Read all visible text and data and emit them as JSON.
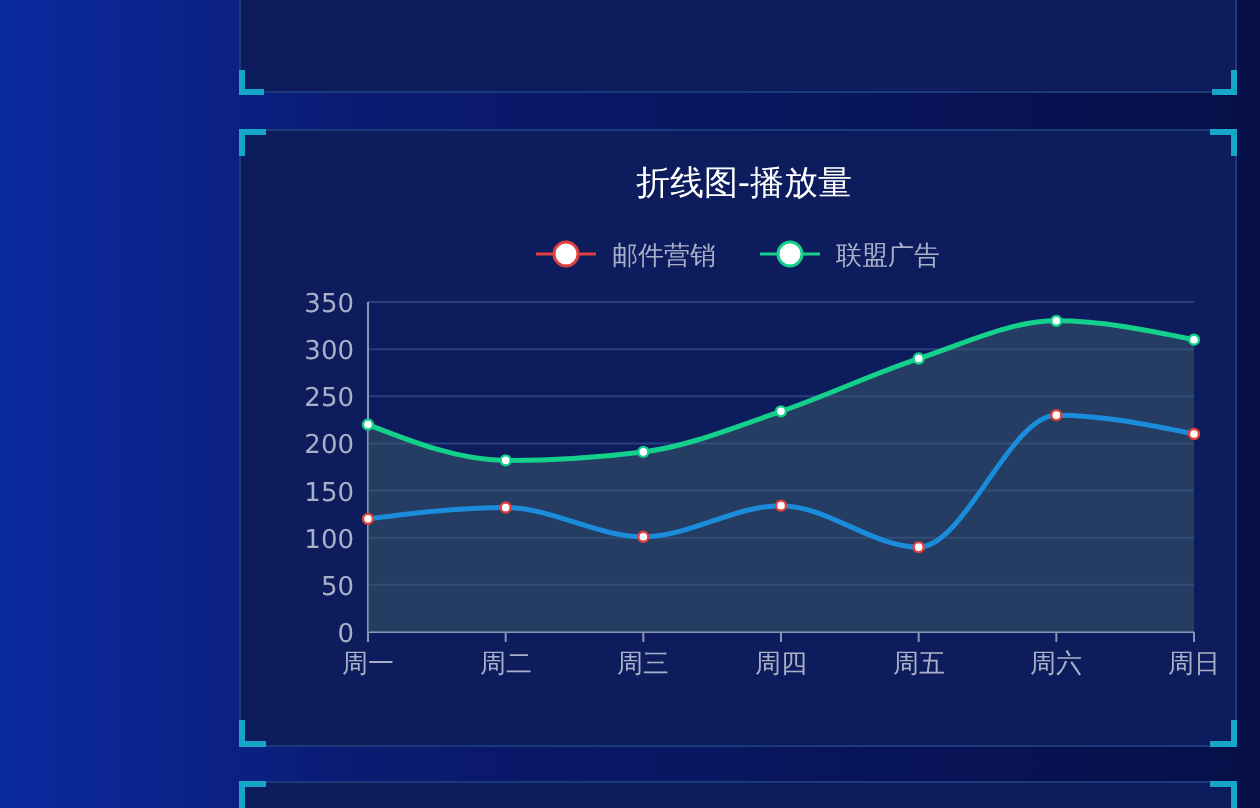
{
  "chart_data": {
    "type": "line",
    "title": "折线图-播放量",
    "categories": [
      "周一",
      "周二",
      "周三",
      "周四",
      "周五",
      "周六",
      "周日"
    ],
    "series": [
      {
        "name": "邮件营销",
        "color": "#1a8cdb",
        "values": [
          120,
          132,
          101,
          134,
          90,
          230,
          210
        ]
      },
      {
        "name": "联盟广告",
        "type": "area",
        "color": "#13d08b",
        "values": [
          220,
          182,
          191,
          234,
          290,
          330,
          310
        ]
      }
    ],
    "ylim": [
      0,
      350
    ],
    "yticks": [
      0,
      50,
      100,
      150,
      200,
      250,
      300,
      350
    ],
    "grid": "y",
    "legend": "top",
    "marker": "circle"
  }
}
